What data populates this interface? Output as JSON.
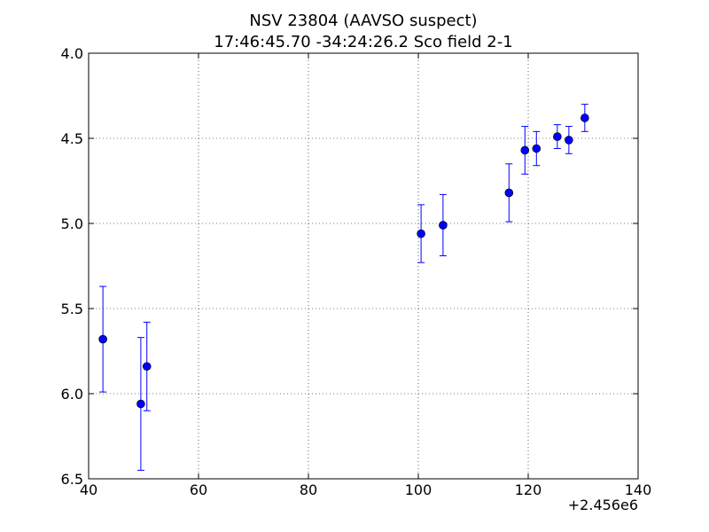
{
  "chart_data": {
    "type": "errorbar",
    "title": "NSV 23804  (AAVSO suspect)",
    "subtitle": "17:46:45.70 -34:24:26.2 Sco field 2-1",
    "x_offset_label": "+2.456e6",
    "x": [
      42.6,
      49.5,
      50.6,
      100.5,
      104.5,
      116.5,
      119.4,
      121.5,
      125.3,
      127.4,
      130.3
    ],
    "values": [
      5.68,
      6.06,
      5.84,
      5.06,
      5.01,
      4.82,
      4.57,
      4.56,
      4.49,
      4.51,
      4.38
    ],
    "errors": [
      0.31,
      0.39,
      0.26,
      0.17,
      0.18,
      0.17,
      0.14,
      0.1,
      0.07,
      0.08,
      0.08
    ],
    "color": "#0000ff",
    "xlim": [
      40,
      140
    ],
    "xticks": [
      40,
      60,
      80,
      100,
      120,
      140
    ],
    "ylim": [
      6.5,
      4.0
    ],
    "yticks": [
      {
        "value": 4,
        "label": "4.0"
      },
      4.5,
      {
        "value": 5,
        "label": "5.0"
      },
      5.5,
      {
        "value": 6,
        "label": "6.0"
      },
      6.5
    ],
    "grid": true
  }
}
